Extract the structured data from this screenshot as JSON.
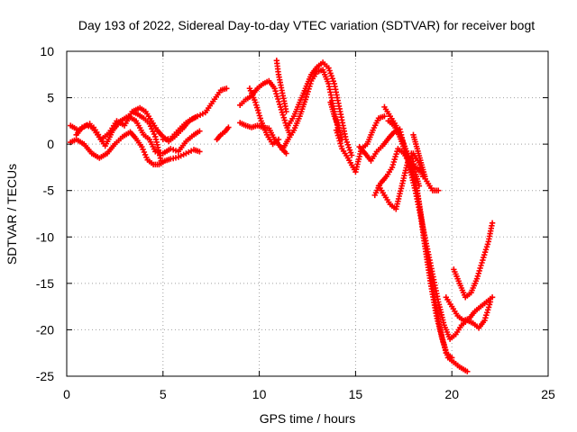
{
  "chart_data": {
    "type": "scatter",
    "title": "Day 193 of 2022, Sidereal Day-to-day VTEC variation (SDTVAR) for receiver bogt",
    "xlabel": "GPS time / hours",
    "ylabel": "SDTVAR / TECUs",
    "xlim": [
      0,
      25
    ],
    "ylim": [
      -25,
      10
    ],
    "xticks": [
      0,
      5,
      10,
      15,
      20,
      25
    ],
    "yticks": [
      -25,
      -20,
      -15,
      -10,
      -5,
      0,
      5,
      10
    ],
    "grid": true,
    "marker": "plus",
    "color": "#ff0000",
    "series": [
      {
        "x": [
          0.2,
          0.6,
          1.0,
          1.4,
          1.8,
          2.2,
          2.6,
          3.0,
          3.4,
          3.7,
          4.0,
          4.3,
          4.6,
          4.9
        ],
        "y": [
          2.0,
          1.5,
          2.0,
          1.8,
          0.5,
          1.2,
          2.5,
          2.0,
          3.5,
          3.2,
          2.8,
          2.2,
          0.8,
          -1.8
        ]
      },
      {
        "x": [
          0.2,
          0.5,
          0.9,
          1.3,
          1.7,
          2.1,
          2.5,
          2.9,
          3.3,
          3.6,
          3.9,
          4.2,
          4.5,
          4.8,
          5.1,
          5.4,
          5.8,
          6.2,
          6.6,
          6.9
        ],
        "y": [
          0.2,
          0.5,
          0.0,
          -1.0,
          -1.5,
          -1.0,
          0.0,
          0.8,
          1.3,
          0.6,
          -0.3,
          -1.7,
          -2.2,
          -2.2,
          -1.8,
          -1.6,
          -1.4,
          -1.0,
          -0.6,
          -0.8
        ]
      },
      {
        "x": [
          0.5,
          0.8,
          1.2,
          1.6,
          2.0,
          2.4,
          2.8,
          3.2,
          3.6,
          4.0,
          4.3,
          4.6,
          5.0,
          5.4,
          5.8,
          6.2,
          6.6,
          6.9
        ],
        "y": [
          1.0,
          1.8,
          2.2,
          1.0,
          -0.2,
          1.5,
          2.5,
          3.0,
          2.5,
          1.0,
          0.5,
          -0.8,
          -1.0,
          -0.5,
          -0.8,
          0.3,
          1.0,
          1.4
        ]
      },
      {
        "x": [
          3.5,
          3.8,
          4.1,
          4.4,
          4.7,
          5.0,
          5.3,
          5.6,
          6.0,
          6.4,
          6.8,
          7.2,
          7.6,
          8.0,
          8.3
        ],
        "y": [
          3.6,
          3.9,
          3.5,
          2.5,
          1.5,
          0.8,
          0.3,
          0.8,
          1.6,
          2.6,
          3.0,
          3.4,
          4.6,
          5.8,
          6.0
        ]
      },
      {
        "x": [
          5.0,
          5.4,
          5.8,
          6.2,
          6.6,
          6.8
        ],
        "y": [
          0.5,
          0.6,
          1.5,
          2.3,
          2.8,
          3.0
        ]
      },
      {
        "x": [
          7.8,
          8.0,
          8.2,
          8.4
        ],
        "y": [
          0.5,
          1.0,
          1.3,
          1.8
        ]
      },
      {
        "x": [
          9.0,
          9.3,
          9.6,
          9.9,
          10.2,
          10.5,
          10.8,
          11.1,
          11.4
        ],
        "y": [
          2.3,
          2.0,
          1.8,
          2.0,
          1.8,
          1.7,
          0.5,
          -0.3,
          -1.0
        ]
      },
      {
        "x": [
          9.0,
          9.3,
          9.6,
          9.9,
          10.2,
          10.5,
          10.8,
          11.1,
          11.4,
          11.6
        ],
        "y": [
          4.2,
          4.8,
          5.2,
          6.0,
          6.5,
          6.8,
          6.0,
          4.0,
          2.0,
          1.0
        ]
      },
      {
        "x": [
          9.5,
          9.8,
          10.1,
          10.4,
          10.7,
          11.0
        ],
        "y": [
          6.0,
          4.5,
          2.5,
          1.0,
          0.0,
          0.5
        ]
      },
      {
        "x": [
          10.9,
          11.0,
          11.2,
          11.4
        ],
        "y": [
          9.0,
          7.5,
          5.5,
          3.5
        ]
      },
      {
        "x": [
          11.5,
          11.8,
          12.1,
          12.4,
          12.7,
          13.0,
          13.3,
          13.6,
          13.9,
          14.2,
          14.5,
          14.8
        ],
        "y": [
          2.0,
          3.0,
          4.5,
          6.0,
          7.5,
          8.3,
          8.8,
          8.2,
          6.5,
          3.5,
          0.5,
          -1.2
        ]
      },
      {
        "x": [
          11.2,
          11.5,
          11.8,
          12.1,
          12.4,
          12.7,
          13.0,
          13.3,
          13.6,
          13.9,
          14.1
        ],
        "y": [
          -0.6,
          0.5,
          1.5,
          3.0,
          4.8,
          6.8,
          7.8,
          8.0,
          6.5,
          3.5,
          1.5
        ]
      },
      {
        "x": [
          13.7,
          13.9,
          14.1,
          14.3
        ],
        "y": [
          4.5,
          3.0,
          2.0,
          0.5
        ]
      },
      {
        "x": [
          14.0,
          14.3,
          14.6,
          15.0,
          15.3,
          15.6,
          15.9,
          16.2,
          16.5
        ],
        "y": [
          1.5,
          -0.5,
          -1.5,
          -3.0,
          -0.5,
          0.0,
          1.5,
          2.8,
          3.0
        ]
      },
      {
        "x": [
          15.2,
          15.5,
          15.8,
          16.1,
          16.4,
          16.7,
          17.0,
          17.3,
          17.6,
          17.9
        ],
        "y": [
          -0.3,
          -1.0,
          -1.8,
          -0.8,
          -0.2,
          0.6,
          1.3,
          1.6,
          -0.8,
          -2.5
        ]
      },
      {
        "x": [
          16.0,
          16.3,
          16.6,
          16.9,
          17.2,
          17.5,
          17.8,
          18.1,
          18.4,
          18.7,
          19.0,
          19.3
        ],
        "y": [
          -5.5,
          -4.2,
          -3.5,
          -2.5,
          -0.5,
          -1.0,
          -2.0,
          -2.5,
          -3.0,
          -4.0,
          -5.0,
          -5.0
        ]
      },
      {
        "x": [
          16.2,
          16.5,
          16.8,
          17.1,
          17.4,
          17.7,
          18.0,
          18.3,
          18.5
        ],
        "y": [
          -4.5,
          -5.5,
          -6.5,
          -7.0,
          -4.5,
          -2.0,
          -1.0,
          -2.0,
          -3.5
        ]
      },
      {
        "x": [
          16.5,
          16.8,
          17.1,
          17.4,
          17.7,
          18.0,
          18.3,
          18.6,
          18.9,
          19.2,
          19.5,
          19.8,
          20.1,
          20.4,
          20.8
        ],
        "y": [
          4.0,
          3.0,
          2.0,
          0.5,
          -1.0,
          -3.0,
          -6.5,
          -11.0,
          -15.0,
          -18.5,
          -21.0,
          -23.0,
          -23.5,
          -24.0,
          -24.5
        ]
      },
      {
        "x": [
          16.7,
          17.0,
          17.3,
          17.6,
          17.9,
          18.2,
          18.5,
          18.8,
          19.1,
          19.4,
          19.7,
          20.0
        ],
        "y": [
          2.5,
          2.0,
          0.8,
          -1.0,
          -3.0,
          -5.0,
          -9.0,
          -13.0,
          -16.5,
          -20.0,
          -22.5,
          -23.0
        ]
      },
      {
        "x": [
          17.8,
          18.1,
          18.4,
          18.7,
          19.0,
          19.3,
          19.6,
          19.9,
          20.2,
          20.5,
          20.8,
          21.1,
          21.4,
          21.7,
          22.0
        ],
        "y": [
          -2.5,
          -5.0,
          -8.0,
          -11.0,
          -14.0,
          -17.0,
          -19.5,
          -21.0,
          -20.5,
          -19.5,
          -19.0,
          -19.3,
          -19.8,
          -19.0,
          -17.0
        ]
      },
      {
        "x": [
          17.9,
          18.1,
          18.3
        ],
        "y": [
          -1.0,
          -3.0,
          -4.5
        ]
      },
      {
        "x": [
          18.0,
          18.2,
          18.4,
          18.6
        ],
        "y": [
          1.0,
          -0.5,
          -2.0,
          -3.5
        ]
      },
      {
        "x": [
          19.7,
          20.0,
          20.3,
          20.6,
          20.9,
          21.2,
          21.5,
          21.8,
          22.1
        ],
        "y": [
          -16.5,
          -17.5,
          -18.5,
          -19.0,
          -18.8,
          -18.0,
          -17.5,
          -17.0,
          -16.5
        ]
      },
      {
        "x": [
          20.1,
          20.4,
          20.7,
          21.0,
          21.3,
          21.6,
          21.9,
          22.1
        ],
        "y": [
          -13.5,
          -15.0,
          -16.5,
          -16.0,
          -14.5,
          -12.5,
          -10.5,
          -8.5
        ]
      }
    ]
  }
}
